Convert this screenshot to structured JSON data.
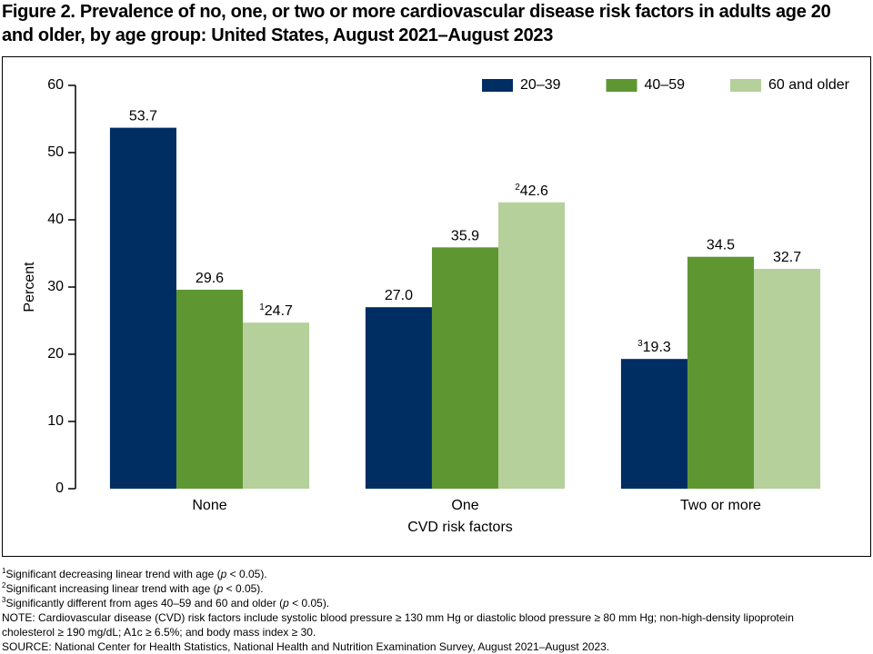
{
  "chart_data": {
    "type": "bar",
    "title": "Figure 2. Prevalence of no, one, or two or more cardiovascular disease risk factors in adults age 20 and older, by age group: United States, August 2021–August 2023",
    "categories": [
      "None",
      "One",
      "Two or more"
    ],
    "series": [
      {
        "name": "20–39",
        "color": "#002d62",
        "values": [
          53.7,
          27.0,
          19.3
        ],
        "value_labels": [
          "53.7",
          "27.0",
          "19.3"
        ],
        "value_notes": [
          null,
          null,
          "3"
        ]
      },
      {
        "name": "40–59",
        "color": "#5e9732",
        "values": [
          29.6,
          35.9,
          34.5
        ],
        "value_labels": [
          "29.6",
          "35.9",
          "34.5"
        ],
        "value_notes": [
          null,
          null,
          null
        ]
      },
      {
        "name": "60 and older",
        "color": "#b5d09a",
        "values": [
          24.7,
          42.6,
          32.7
        ],
        "value_labels": [
          "24.7",
          "42.6",
          "32.7"
        ],
        "value_notes": [
          "1",
          "2",
          null
        ]
      }
    ],
    "ylabel": "Percent",
    "xlabel": "CVD risk factors",
    "ylim": [
      0,
      60
    ],
    "yticks": [
      0,
      10,
      20,
      30,
      40,
      50,
      60
    ],
    "legend": "upper right",
    "footnotes": [
      {
        "mark": "1",
        "before": "Significant decreasing linear trend with age (",
        "italic": "p",
        "after": " < 0.05)."
      },
      {
        "mark": "2",
        "before": "Significant increasing linear trend with age (",
        "italic": "p",
        "after": " < 0.05)."
      },
      {
        "mark": "3",
        "before": "Significantly different from ages 40–59 and 60 and older (",
        "italic": "p",
        "after": " < 0.05)."
      }
    ],
    "note": "NOTE: Cardiovascular disease (CVD) risk factors include systolic blood pressure ≥ 130 mm Hg or diastolic blood pressure ≥ 80 mm Hg; non-high-density lipoprotein cholesterol ≥ 190 mg/dL; A1c ≥ 6.5%; and body mass index ≥ 30.",
    "source": "SOURCE: National Center for Health Statistics, National Health and Nutrition Examination Survey, August 2021–August 2023."
  }
}
